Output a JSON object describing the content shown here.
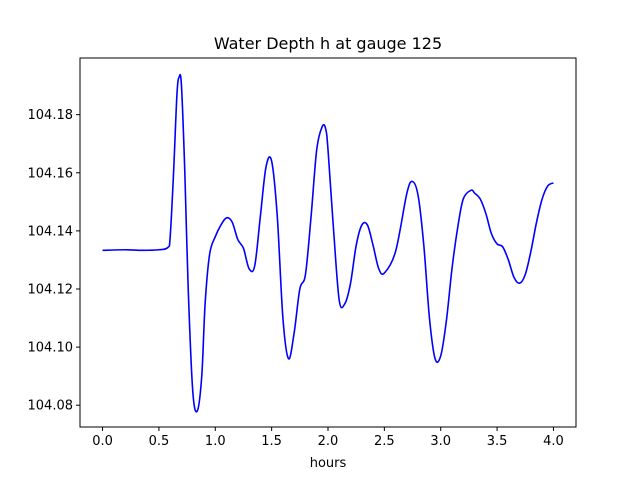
{
  "chart_data": {
    "type": "line",
    "title": "Water Depth h at gauge 125",
    "xlabel": "hours",
    "ylabel": "",
    "xlim": [
      -0.2,
      4.2
    ],
    "ylim": [
      104.0725,
      104.1995
    ],
    "grid": false,
    "x_ticks": [
      0.0,
      0.5,
      1.0,
      1.5,
      2.0,
      2.5,
      3.0,
      3.5,
      4.0
    ],
    "x_tick_labels": [
      "0.0",
      "0.5",
      "1.0",
      "1.5",
      "2.0",
      "2.5",
      "3.0",
      "3.5",
      "4.0"
    ],
    "y_ticks": [
      104.08,
      104.1,
      104.12,
      104.14,
      104.16,
      104.18
    ],
    "y_tick_labels": [
      "104.08",
      "104.10",
      "104.12",
      "104.14",
      "104.16",
      "104.18"
    ],
    "series": [
      {
        "color": "#0000ff",
        "x": [
          0.0,
          0.2,
          0.35,
          0.5,
          0.58,
          0.6,
          0.63,
          0.66,
          0.68,
          0.7,
          0.73,
          0.76,
          0.8,
          0.84,
          0.88,
          0.91,
          0.95,
          1.0,
          1.05,
          1.1,
          1.15,
          1.2,
          1.25,
          1.3,
          1.35,
          1.4,
          1.45,
          1.5,
          1.55,
          1.6,
          1.65,
          1.7,
          1.75,
          1.8,
          1.85,
          1.9,
          1.95,
          1.98,
          2.0,
          2.05,
          2.1,
          2.15,
          2.2,
          2.25,
          2.3,
          2.35,
          2.4,
          2.45,
          2.5,
          2.6,
          2.7,
          2.75,
          2.8,
          2.85,
          2.9,
          2.95,
          3.0,
          3.05,
          3.1,
          3.15,
          3.2,
          3.27,
          3.3,
          3.35,
          3.4,
          3.45,
          3.5,
          3.55,
          3.6,
          3.65,
          3.7,
          3.75,
          3.8,
          3.85,
          3.9,
          3.95,
          4.0
        ],
        "y": [
          104.1333,
          104.1335,
          104.1333,
          104.1335,
          104.1343,
          104.138,
          104.16,
          104.187,
          104.193,
          104.19,
          104.16,
          104.12,
          104.085,
          104.078,
          104.09,
          104.115,
          104.132,
          104.138,
          104.142,
          104.1445,
          104.143,
          104.137,
          104.134,
          104.127,
          104.128,
          104.145,
          104.162,
          104.164,
          104.145,
          104.11,
          104.096,
          104.105,
          104.12,
          104.125,
          104.145,
          104.168,
          104.176,
          104.175,
          104.168,
          104.14,
          104.116,
          104.115,
          104.122,
          104.135,
          104.142,
          104.142,
          104.135,
          104.127,
          104.1255,
          104.133,
          104.153,
          104.157,
          104.152,
          104.135,
          104.11,
          104.096,
          104.097,
          104.109,
          104.127,
          104.141,
          104.151,
          104.154,
          104.153,
          104.151,
          104.146,
          104.139,
          104.1355,
          104.1345,
          104.13,
          104.124,
          104.122,
          104.125,
          104.133,
          104.143,
          104.151,
          104.1555,
          104.1565
        ]
      }
    ]
  }
}
